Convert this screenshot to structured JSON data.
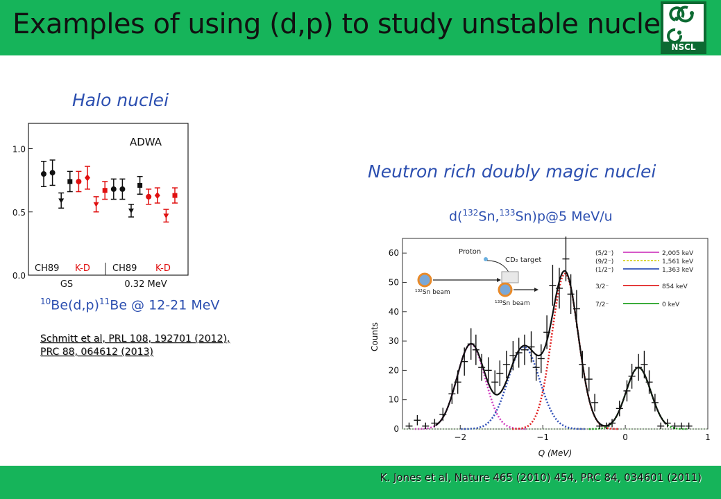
{
  "header": {
    "title": "Examples of using (d,p) to study unstable nuclei",
    "logo_text": "NSCL",
    "color": "#16b45a"
  },
  "halo": {
    "heading": "Halo nuclei",
    "reaction": {
      "a": "10",
      "b": "Be(d,p)",
      "c": "11",
      "d": "Be @ 12-21 MeV"
    },
    "refs": [
      "Schmitt et al, PRL 108, 192701 (2012),",
      "PRC 88, 064612 (2013)"
    ]
  },
  "magic": {
    "heading": "Neutron rich doubly magic nuclei",
    "reaction": {
      "a": "d(",
      "b": "132",
      "c": "Sn,",
      "d": "133",
      "e": "Sn)p@5 MeV/u"
    }
  },
  "footer": {
    "text": "K. Jones et al, Nature 465 (2010) 454, PRC 84, 034601 (2011)"
  },
  "chart_data": [
    {
      "type": "scatter",
      "annotation": "ADWA",
      "ylim": [
        0,
        1.2
      ],
      "yticks": [
        "1.0",
        "0.5",
        "0.0"
      ],
      "group_labels": [
        "CH89",
        "K-D",
        "CH89",
        "K-D"
      ],
      "category_labels": [
        "GS",
        "0.32 MeV"
      ],
      "series": [
        {
          "color": "#111111",
          "points": [
            {
              "x": 1,
              "y": 0.8,
              "err": 0.1,
              "marker": "circle"
            },
            {
              "x": 2,
              "y": 0.81,
              "err": 0.1,
              "marker": "circle"
            },
            {
              "x": 3,
              "y": 0.59,
              "err": 0.06,
              "marker": "triangle-down"
            },
            {
              "x": 4,
              "y": 0.74,
              "err": 0.08,
              "marker": "square"
            },
            {
              "x": 9,
              "y": 0.68,
              "err": 0.08,
              "marker": "circle"
            },
            {
              "x": 10,
              "y": 0.68,
              "err": 0.08,
              "marker": "circle"
            },
            {
              "x": 11,
              "y": 0.51,
              "err": 0.05,
              "marker": "triangle-down"
            },
            {
              "x": 12,
              "y": 0.71,
              "err": 0.07,
              "marker": "square"
            }
          ]
        },
        {
          "color": "#e01010",
          "points": [
            {
              "x": 5,
              "y": 0.74,
              "err": 0.08,
              "marker": "circle"
            },
            {
              "x": 6,
              "y": 0.77,
              "err": 0.09,
              "marker": "diamond"
            },
            {
              "x": 7,
              "y": 0.56,
              "err": 0.06,
              "marker": "triangle-down"
            },
            {
              "x": 8,
              "y": 0.67,
              "err": 0.07,
              "marker": "square"
            },
            {
              "x": 13,
              "y": 0.62,
              "err": 0.06,
              "marker": "circle"
            },
            {
              "x": 14,
              "y": 0.63,
              "err": 0.06,
              "marker": "diamond"
            },
            {
              "x": 15,
              "y": 0.47,
              "err": 0.05,
              "marker": "triangle-down"
            },
            {
              "x": 16,
              "y": 0.63,
              "err": 0.06,
              "marker": "square"
            }
          ]
        }
      ]
    },
    {
      "type": "line",
      "xlabel": "Q (MeV)",
      "ylabel": "Counts",
      "xlim": [
        -2.7,
        1.0
      ],
      "ylim": [
        0,
        65
      ],
      "xticks": [
        -2,
        -1,
        0,
        1
      ],
      "yticks": [
        0,
        10,
        20,
        30,
        40,
        50,
        60
      ],
      "diagram_labels": [
        "Proton",
        "CD₂ target",
        "¹³²Sn beam",
        "¹³³Sn beam"
      ],
      "legend": [
        {
          "label": "(5/2⁻)",
          "energy": "2,005 keV",
          "color": "#d040c0",
          "dash": false
        },
        {
          "label": "(9/2⁻)",
          "energy": "1,561 keV",
          "color": "#d8d020",
          "dash": true
        },
        {
          "label": "(1/2⁻)",
          "energy": "1,363 keV",
          "color": "#3050b8",
          "dash": false
        },
        {
          "label": "3/2⁻",
          "energy": "854 keV",
          "color": "#e02020",
          "dash": false
        },
        {
          "label": "7/2⁻",
          "energy": "0 keV",
          "color": "#20a020",
          "dash": false
        }
      ],
      "peaks": [
        {
          "name": "(5/2⁻)",
          "center": -1.87,
          "amp": 29,
          "sigma": 0.17,
          "color": "#d040c0"
        },
        {
          "name": "(1/2⁻)",
          "center": -1.23,
          "amp": 28,
          "sigma": 0.19,
          "color": "#3050b8"
        },
        {
          "name": "3/2⁻",
          "center": -0.73,
          "amp": 53,
          "sigma": 0.16,
          "color": "#e02020"
        },
        {
          "name": "7/2⁻",
          "center": 0.16,
          "amp": 21,
          "sigma": 0.15,
          "color": "#20a020"
        }
      ],
      "data": [
        [
          -2.62,
          1
        ],
        [
          -2.52,
          3
        ],
        [
          -2.42,
          1
        ],
        [
          -2.31,
          2
        ],
        [
          -2.21,
          5
        ],
        [
          -2.1,
          12
        ],
        [
          -2.03,
          16
        ],
        [
          -1.95,
          23
        ],
        [
          -1.87,
          29
        ],
        [
          -1.81,
          27
        ],
        [
          -1.74,
          21
        ],
        [
          -1.66,
          20
        ],
        [
          -1.58,
          16
        ],
        [
          -1.52,
          19
        ],
        [
          -1.44,
          22
        ],
        [
          -1.36,
          25
        ],
        [
          -1.29,
          26
        ],
        [
          -1.22,
          27
        ],
        [
          -1.14,
          28
        ],
        [
          -1.08,
          21
        ],
        [
          -1.02,
          24
        ],
        [
          -0.95,
          33
        ],
        [
          -0.88,
          49
        ],
        [
          -0.8,
          48
        ],
        [
          -0.72,
          58
        ],
        [
          -0.66,
          46
        ],
        [
          -0.59,
          41
        ],
        [
          -0.52,
          22
        ],
        [
          -0.44,
          17
        ],
        [
          -0.37,
          9
        ],
        [
          -0.31,
          1
        ],
        [
          -0.23,
          1
        ],
        [
          -0.16,
          2
        ],
        [
          -0.07,
          7
        ],
        [
          0.02,
          13
        ],
        [
          0.08,
          18
        ],
        [
          0.16,
          21
        ],
        [
          0.23,
          22
        ],
        [
          0.29,
          16
        ],
        [
          0.36,
          9
        ],
        [
          0.43,
          1
        ],
        [
          0.51,
          2
        ],
        [
          0.6,
          1
        ],
        [
          0.68,
          1
        ],
        [
          0.77,
          1
        ]
      ]
    }
  ]
}
